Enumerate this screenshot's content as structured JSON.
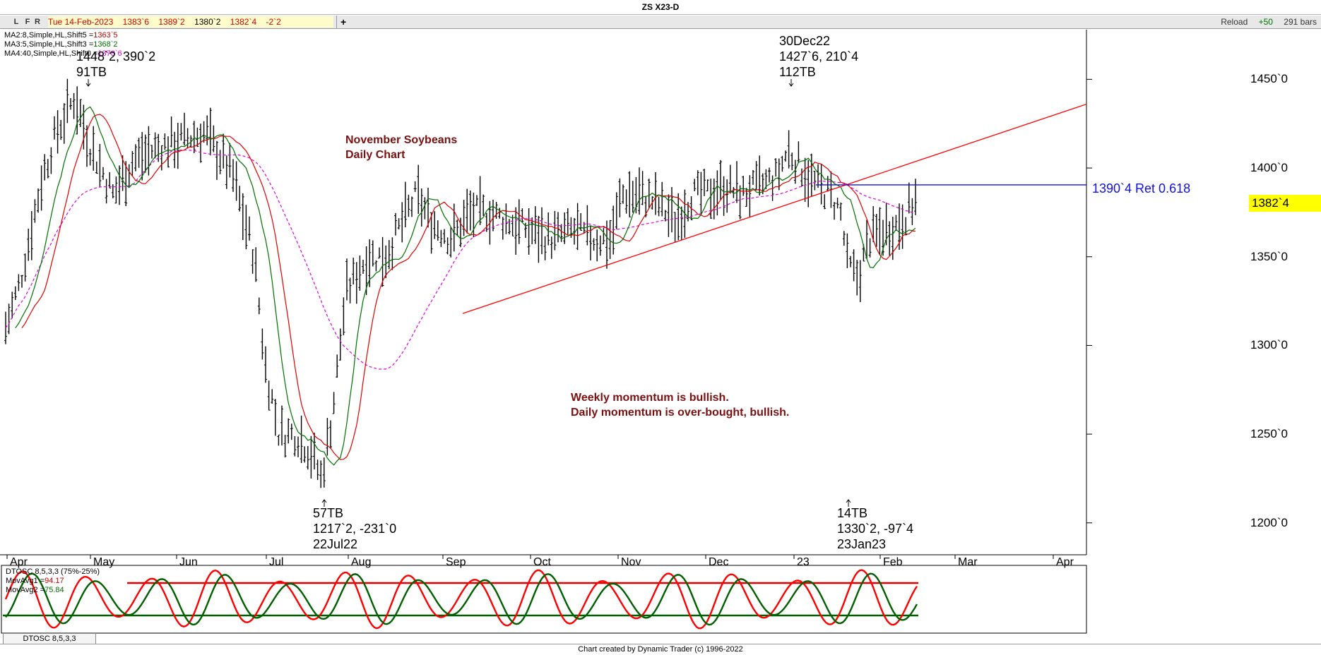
{
  "window": {
    "title": "ZS X23-D"
  },
  "toolbar": {
    "btn_l": "L",
    "btn_f": "F",
    "btn_r": "R",
    "date": "Tue 14-Feb-2023",
    "open": "1383`6",
    "high": "1389`2",
    "low": "1380`2",
    "close": "1382`4",
    "change": "-2`2",
    "add_label": "+",
    "reload_label": "Reload",
    "reload_step": "+50",
    "bars_count": "291 bars"
  },
  "legend": {
    "ma2": {
      "label": "MA2:8,Simple,HL,Shift5 =",
      "value": "1363`5"
    },
    "ma3": {
      "label": "MA3:5,Simple,HL,Shift3 =",
      "value": "1368`2"
    },
    "ma4": {
      "label": "MA4:40,Simple,HL,Shift0 =",
      "value": "1378`6"
    }
  },
  "osc_legend": {
    "name": "DTOSC 8,5,3,3 (75%-25%)",
    "mov1": {
      "label": "MovAvg1 =",
      "value": "94.17"
    },
    "mov2": {
      "label": "MovAvg2 =",
      "value": "75.84"
    },
    "tab": "DTOSC 8,5,3,3 (75%-25%)"
  },
  "footer": "Chart created by Dynamic Trader  (c) 1996-2022",
  "colors": {
    "bars": "#000000",
    "ma_fast": "#007000",
    "ma_slow": "#e00000",
    "ma_40": "#e000e0",
    "trendline": "#ff0000",
    "retracement": "#1010e0",
    "osc_fast": "#ff0000",
    "osc_slow": "#006000",
    "osc_level": "#e00000",
    "osc_low_level": "#006000",
    "annotation_text": "#7a1010",
    "price_tag": "#ffff00"
  },
  "chart_data": {
    "type": "ohlc",
    "instrument": "ZS X23-D",
    "yticks": [
      "1450`0",
      "1400`0",
      "1350`0",
      "1300`0",
      "1250`0",
      "1200`0"
    ],
    "yvalues": [
      1450,
      1400,
      1350,
      1300,
      1250,
      1200
    ],
    "ylim": [
      1182,
      1478
    ],
    "xticks": [
      "Apr",
      "May",
      "Jun",
      "Jul",
      "Aug",
      "Sep",
      "Oct",
      "Nov",
      "Dec",
      "23",
      "Feb",
      "Mar",
      "Apr"
    ],
    "annotations": {
      "title_line1": "November Soybeans",
      "title_line2": "Daily Chart",
      "momentum_line1": "Weekly momentum is bullish.",
      "momentum_line2": "Daily momentum is over-bought, bullish.",
      "top_left_line1": "1448`2, 390`2",
      "top_left_line2": "91TB",
      "top_right_line1": "30Dec22",
      "top_right_line2": "1427`6, 210`4",
      "top_right_line3": "112TB",
      "low1_line1": "57TB",
      "low1_line2": "1217`2, -231`0",
      "low1_line3": "22Jul22",
      "low2_line1": "14TB",
      "low2_line2": "1330`2, -97`4",
      "low2_line3": "23Jan23"
    },
    "retracement": {
      "price": 1390.5,
      "label": "1390`4 Ret 0.618"
    },
    "last_price": {
      "value": 1382.5,
      "label": "1382`4"
    },
    "trendline": {
      "from_price": 1318,
      "to_price": 1436
    },
    "oscillator": {
      "upper_level": 75,
      "lower_level": 25
    }
  }
}
